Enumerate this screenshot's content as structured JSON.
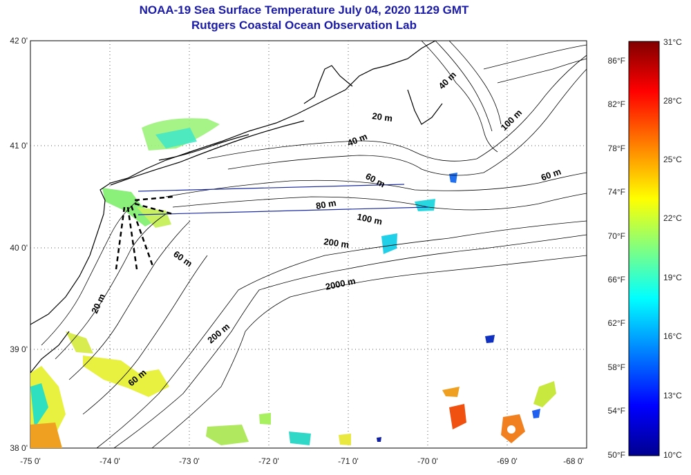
{
  "header": {
    "title": "NOAA-19 Sea Surface Temperature July 04, 2020 1129 GMT",
    "subtitle": "Rutgers Coastal Ocean Observation Lab"
  },
  "map": {
    "lon_labels": [
      "-75 0'",
      "-74 0'",
      "-73 0'",
      "-72 0'",
      "-71 0'",
      "-70 0'",
      "-69 0'",
      "-68 0'"
    ],
    "lat_labels": [
      "42 0'",
      "41 0'",
      "40 0'",
      "39 0'",
      "38 0'"
    ],
    "lon_range": [
      -75,
      -68
    ],
    "lat_range": [
      38,
      42
    ],
    "grid": "dotted",
    "contour_labels": [
      "40 m",
      "100 m",
      "20 m",
      "40 m",
      "60 m",
      "60 m",
      "80 m",
      "100 m",
      "200 m",
      "60 m",
      "20 m",
      "2000 m",
      "200 m",
      "60 m"
    ],
    "land_color": "#ffffff",
    "ocean_color": "#ffffff",
    "transect_color": "#1a2aa0"
  },
  "colorbar": {
    "fahrenheit_labels": [
      "86°F",
      "82°F",
      "78°F",
      "74°F",
      "70°F",
      "66°F",
      "62°F",
      "58°F",
      "54°F",
      "50°F"
    ],
    "celsius_labels": [
      "31°C",
      "28°C",
      "25°C",
      "22°C",
      "19°C",
      "16°C",
      "13°C",
      "10°C"
    ],
    "range_celsius": [
      10,
      31
    ],
    "colors": [
      "#00008f",
      "#0000ff",
      "#0080ff",
      "#00ffff",
      "#80ff80",
      "#ffff00",
      "#ff8000",
      "#ff0000",
      "#800000"
    ]
  }
}
